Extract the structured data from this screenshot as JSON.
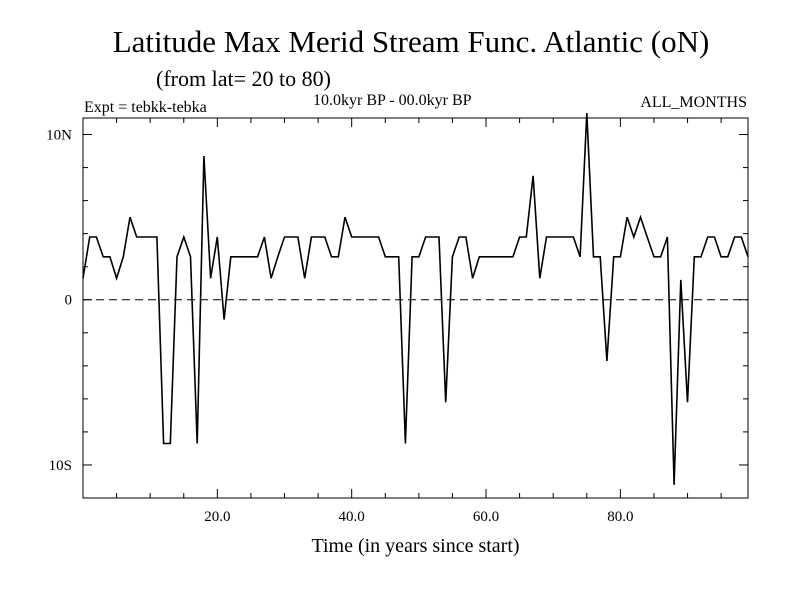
{
  "header": {
    "title": "Latitude Max Merid Stream Func. Atlantic (oN)",
    "subtitle": "(from lat= 20 to 80)",
    "expt": "Expt = tebkk-tebka",
    "period": "10.0kyr BP - 00.0kyr BP",
    "months": "ALL_MONTHS"
  },
  "chart_data": {
    "type": "line",
    "title": "Latitude Max Merid Stream Func. Atlantic (oN)",
    "subtitle": "(from lat= 20 to 80)",
    "xlabel": "Time (in years since start)",
    "ylabel": "",
    "xlim": [
      0,
      99
    ],
    "ylim": [
      -12,
      11
    ],
    "x_ticks": [
      {
        "value": 20,
        "label": "20.0"
      },
      {
        "value": 40,
        "label": "40.0"
      },
      {
        "value": 60,
        "label": "60.0"
      },
      {
        "value": 80,
        "label": "80.0"
      }
    ],
    "y_ticks": [
      {
        "value": 10,
        "label": "10N"
      },
      {
        "value": 0,
        "label": "0"
      },
      {
        "value": -10,
        "label": "10S"
      }
    ],
    "reference_line": {
      "y": 0,
      "style": "dashed"
    },
    "series": [
      {
        "name": "tebkk-tebka",
        "x": [
          0,
          1,
          2,
          3,
          4,
          5,
          6,
          7,
          8,
          9,
          10,
          11,
          12,
          13,
          14,
          15,
          16,
          17,
          18,
          19,
          20,
          21,
          22,
          23,
          24,
          25,
          26,
          27,
          28,
          29,
          30,
          31,
          32,
          33,
          34,
          35,
          36,
          37,
          38,
          39,
          40,
          41,
          42,
          43,
          44,
          45,
          46,
          47,
          48,
          49,
          50,
          51,
          52,
          53,
          54,
          55,
          56,
          57,
          58,
          59,
          60,
          61,
          62,
          63,
          64,
          65,
          66,
          67,
          68,
          69,
          70,
          71,
          72,
          73,
          74,
          75,
          76,
          77,
          78,
          79,
          80,
          81,
          82,
          83,
          84,
          85,
          86,
          87,
          88,
          89,
          90,
          91,
          92,
          93,
          94,
          95,
          96,
          97,
          98,
          99
        ],
        "values": [
          1.3,
          3.8,
          3.8,
          2.6,
          2.6,
          1.3,
          2.6,
          5.0,
          3.8,
          3.8,
          3.8,
          3.8,
          -8.7,
          -8.7,
          2.6,
          3.8,
          2.6,
          -8.7,
          8.7,
          1.3,
          3.8,
          -1.2,
          2.6,
          2.6,
          2.6,
          2.6,
          2.6,
          3.8,
          1.3,
          2.6,
          3.8,
          3.8,
          3.8,
          1.3,
          3.8,
          3.8,
          3.8,
          2.6,
          2.6,
          5.0,
          3.8,
          3.8,
          3.8,
          3.8,
          3.8,
          2.6,
          2.6,
          2.6,
          -8.7,
          2.6,
          2.6,
          3.8,
          3.8,
          3.8,
          -6.2,
          2.6,
          3.8,
          3.8,
          1.3,
          2.6,
          2.6,
          2.6,
          2.6,
          2.6,
          2.6,
          3.8,
          3.8,
          7.5,
          1.3,
          3.8,
          3.8,
          3.8,
          3.8,
          3.8,
          2.6,
          11.3,
          2.6,
          2.6,
          -3.7,
          2.6,
          2.6,
          5.0,
          3.8,
          5.0,
          3.8,
          2.6,
          2.6,
          3.8,
          -11.2,
          1.2,
          -6.2,
          2.6,
          2.6,
          3.8,
          3.8,
          2.6,
          2.6,
          3.8,
          3.8,
          2.6
        ]
      }
    ]
  }
}
